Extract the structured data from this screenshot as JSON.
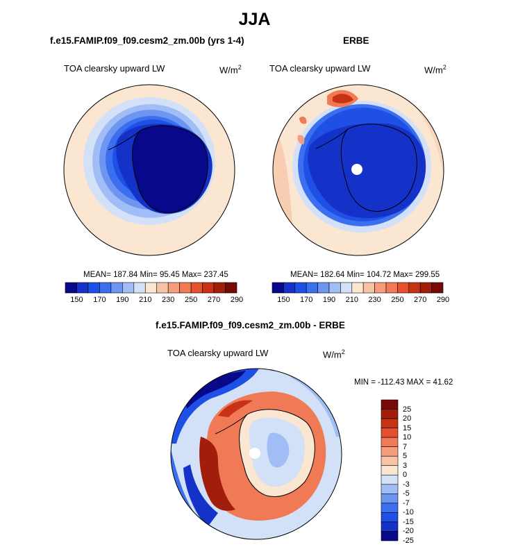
{
  "title": "JJA",
  "panels": {
    "model": {
      "title": "f.e15.FAMIP.f09_f09.cesm2_zm.00b (yrs 1-4)",
      "variable": "TOA clearsky upward LW",
      "units": "W/m",
      "units_sup": "2",
      "stats": "MEAN= 187.84  Min=  95.45  Max= 237.45"
    },
    "obs": {
      "title": "ERBE",
      "variable": "TOA clearsky upward LW",
      "units": "W/m",
      "units_sup": "2",
      "stats": "MEAN= 182.64  Min= 104.72  Max= 299.55"
    },
    "diff": {
      "title": "f.e15.FAMIP.f09_f09.cesm2_zm.00b - ERBE",
      "variable": "TOA clearsky upward LW",
      "units": "W/m",
      "units_sup": "2",
      "stats": "MIN = -112.43 MAX =  41.62"
    }
  },
  "colorbar_abs": {
    "colors": [
      "#08088a",
      "#1432c8",
      "#1e50e6",
      "#3c6ef0",
      "#6e96f0",
      "#a0bef5",
      "#d2e1f8",
      "#fbe6d2",
      "#f7c3a5",
      "#f49e7d",
      "#ef7a55",
      "#e6502d",
      "#c83214",
      "#a01e0a",
      "#780a05"
    ],
    "tick_labels": [
      "150",
      "170",
      "190",
      "210",
      "230",
      "250",
      "270",
      "290"
    ]
  },
  "colorbar_diff": {
    "colors": [
      "#08088a",
      "#1432c8",
      "#1e50e6",
      "#3c6ef0",
      "#6e96f0",
      "#a0bef5",
      "#d2e1f8",
      "#fbe6d2",
      "#f7c3a5",
      "#f49e7d",
      "#ef7a55",
      "#e6502d",
      "#c83214",
      "#a01e0a",
      "#780a05"
    ],
    "tick_labels": [
      "25",
      "20",
      "15",
      "10",
      "7",
      "5",
      "3",
      "0",
      "-3",
      "-5",
      "-7",
      "-10",
      "-15",
      "-20",
      "-25"
    ]
  }
}
